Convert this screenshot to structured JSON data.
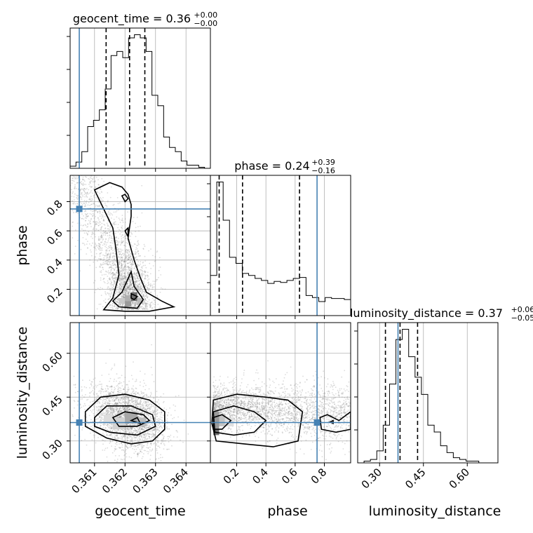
{
  "chart_data": {
    "type": "corner",
    "parameters": [
      {
        "name": "geocent_time",
        "range": [
          0.3602,
          0.3648
        ],
        "ticks": [
          "0.361",
          "0.362",
          "0.363",
          "0.364"
        ],
        "tick_values": [
          0.361,
          0.362,
          0.363,
          0.364
        ],
        "truth": 0.3605,
        "median": 0.36215,
        "quantiles": [
          0.36138,
          0.36215,
          0.36265
        ],
        "title": "geocent_time = 0.36",
        "title_plus": "+0.00",
        "title_minus": "−0.00",
        "xlabel": "geocent_time",
        "hist": [
          2,
          6,
          16,
          40,
          46,
          56,
          76,
          108,
          112,
          106,
          125,
          128,
          125,
          112,
          70,
          60,
          30,
          20,
          16,
          7,
          3,
          3,
          1,
          0
        ]
      },
      {
        "name": "phase",
        "range": [
          0.02,
          0.98
        ],
        "ticks": [
          "0.2",
          "0.4",
          "0.6",
          "0.8"
        ],
        "tick_values": [
          0.2,
          0.4,
          0.6,
          0.8
        ],
        "truth": 0.75,
        "median": 0.24,
        "quantiles": [
          0.08,
          0.24,
          0.63
        ],
        "title": "phase = 0.24",
        "title_plus": "+0.39",
        "title_minus": "−0.16",
        "xlabel": "phase",
        "ylabel": "phase",
        "hist": [
          40,
          133,
          95,
          58,
          52,
          42,
          40,
          37,
          35,
          32,
          34,
          33,
          35,
          37,
          38,
          20,
          18,
          14,
          18,
          17,
          17,
          16
        ]
      },
      {
        "name": "luminosity_distance",
        "range": [
          0.225,
          0.705
        ],
        "ticks": [
          "0.30",
          "0.45",
          "0.60"
        ],
        "tick_values": [
          0.3,
          0.45,
          0.6
        ],
        "truth": 0.363,
        "median": 0.37,
        "quantiles": [
          0.32,
          0.37,
          0.43
        ],
        "title": "luminosity_distance = 0.37",
        "title_plus": "+0.06",
        "title_minus": "−0.05",
        "xlabel": "luminosity_distance",
        "ylabel": "luminosity_distance",
        "hist": [
          0,
          1,
          2,
          7,
          22,
          46,
          72,
          78,
          62,
          50,
          40,
          22,
          18,
          10,
          6,
          3,
          2,
          1,
          1,
          0,
          0,
          0
        ]
      }
    ],
    "truth_color": "#4682b4",
    "grid": true,
    "scatter_color": "#808080"
  }
}
